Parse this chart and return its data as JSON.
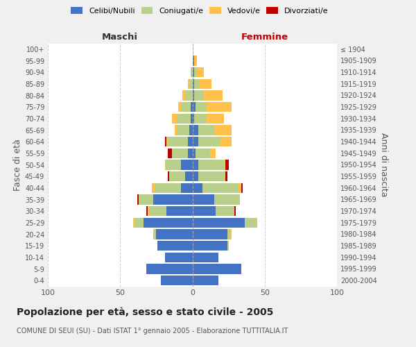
{
  "age_groups": [
    "0-4",
    "5-9",
    "10-14",
    "15-19",
    "20-24",
    "25-29",
    "30-34",
    "35-39",
    "40-44",
    "45-49",
    "50-54",
    "55-59",
    "60-64",
    "65-69",
    "70-74",
    "75-79",
    "80-84",
    "85-89",
    "90-94",
    "95-99",
    "100+"
  ],
  "birth_years": [
    "2000-2004",
    "1995-1999",
    "1990-1994",
    "1985-1989",
    "1980-1984",
    "1975-1979",
    "1970-1974",
    "1965-1969",
    "1960-1964",
    "1955-1959",
    "1950-1954",
    "1945-1949",
    "1940-1944",
    "1935-1939",
    "1930-1934",
    "1925-1929",
    "1920-1924",
    "1915-1919",
    "1910-1914",
    "1905-1909",
    "≤ 1904"
  ],
  "maschi": {
    "celibi": [
      22,
      32,
      19,
      24,
      25,
      34,
      18,
      27,
      8,
      5,
      8,
      3,
      3,
      2,
      1,
      1,
      0,
      0,
      0,
      0,
      0
    ],
    "coniugati": [
      0,
      0,
      0,
      0,
      2,
      6,
      12,
      10,
      18,
      11,
      11,
      11,
      14,
      9,
      10,
      7,
      5,
      2,
      1,
      0,
      0
    ],
    "vedovi": [
      0,
      0,
      0,
      0,
      0,
      1,
      1,
      0,
      2,
      0,
      0,
      0,
      1,
      1,
      3,
      2,
      2,
      1,
      0,
      0,
      0
    ],
    "divorziati": [
      0,
      0,
      0,
      0,
      0,
      0,
      1,
      1,
      0,
      1,
      0,
      3,
      1,
      0,
      0,
      0,
      0,
      0,
      0,
      0,
      0
    ]
  },
  "femmine": {
    "nubili": [
      18,
      34,
      18,
      24,
      24,
      36,
      16,
      15,
      7,
      4,
      4,
      2,
      4,
      4,
      1,
      2,
      1,
      1,
      1,
      1,
      0
    ],
    "coniugate": [
      0,
      0,
      0,
      1,
      2,
      9,
      13,
      18,
      25,
      18,
      18,
      10,
      15,
      11,
      9,
      8,
      7,
      4,
      2,
      0,
      0
    ],
    "vedove": [
      0,
      0,
      0,
      0,
      1,
      0,
      0,
      0,
      2,
      1,
      1,
      4,
      8,
      12,
      12,
      17,
      13,
      8,
      5,
      2,
      0
    ],
    "divorziate": [
      0,
      0,
      0,
      0,
      0,
      0,
      1,
      0,
      1,
      1,
      2,
      0,
      0,
      0,
      0,
      0,
      0,
      0,
      0,
      0,
      0
    ]
  },
  "colors": {
    "celibi_nubili": "#4472c4",
    "coniugati": "#b8d08a",
    "vedovi": "#ffc04c",
    "divorziati": "#c00000"
  },
  "xlim": [
    -100,
    100
  ],
  "title": "Popolazione per età, sesso e stato civile - 2005",
  "subtitle": "COMUNE DI SEUI (SU) - Dati ISTAT 1° gennaio 2005 - Elaborazione TUTTITALIA.IT",
  "ylabel_left": "Fasce di età",
  "ylabel_right": "Anni di nascita",
  "xlabel_left": "Maschi",
  "xlabel_right": "Femmine",
  "background_color": "#f0f0f0",
  "plot_bg_color": "#ffffff",
  "grid_color": "#cccccc"
}
